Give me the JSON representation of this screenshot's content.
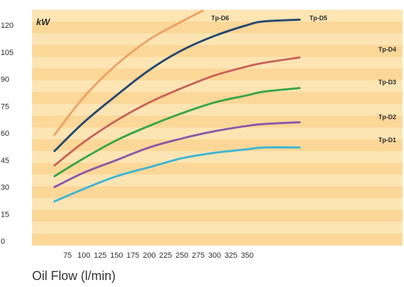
{
  "chart_data": {
    "type": "line",
    "title": "",
    "ylabel": "kW",
    "xlabel": "Oil Flow (l/min)",
    "xlim": [
      50,
      440
    ],
    "ylim": [
      0,
      125
    ],
    "x_ticks": [
      75,
      100,
      125,
      150,
      175,
      200,
      225,
      250,
      275,
      300,
      325,
      350
    ],
    "y_ticks": [
      0,
      15,
      30,
      45,
      60,
      75,
      90,
      105,
      120
    ],
    "grid": "horizontal bands",
    "legend": "inline labels at line ends",
    "series": [
      {
        "name": "Tp-D1",
        "color": "#3fb6d3",
        "x": [
          55,
          100,
          150,
          200,
          250,
          300,
          350,
          375,
          430
        ],
        "y": [
          22,
          29,
          36,
          41,
          46,
          49,
          51,
          52,
          52
        ]
      },
      {
        "name": "Tp-D2",
        "color": "#8b5aa8",
        "x": [
          55,
          100,
          150,
          200,
          250,
          300,
          350,
          375,
          430
        ],
        "y": [
          30,
          38,
          45,
          52,
          57,
          61,
          64,
          65,
          66
        ]
      },
      {
        "name": "Tp-D3",
        "color": "#3aa54a",
        "x": [
          55,
          100,
          150,
          200,
          250,
          300,
          350,
          375,
          430
        ],
        "y": [
          36,
          46,
          56,
          64,
          71,
          77,
          81,
          83,
          85
        ]
      },
      {
        "name": "Tp-D4",
        "color": "#c8645a",
        "x": [
          55,
          100,
          150,
          200,
          250,
          300,
          350,
          375,
          430
        ],
        "y": [
          42,
          55,
          67,
          77,
          85,
          92,
          97,
          99,
          102
        ]
      },
      {
        "name": "Tp-D5",
        "color": "#26486f",
        "x": [
          55,
          100,
          150,
          200,
          250,
          300,
          350,
          375,
          430
        ],
        "y": [
          50,
          66,
          81,
          95,
          106,
          114,
          120,
          122,
          123
        ]
      },
      {
        "name": "Tp-D6",
        "color": "#f0a166",
        "x": [
          55,
          100,
          150,
          200,
          250,
          282
        ],
        "y": [
          59,
          80,
          98,
          112,
          122,
          128
        ]
      }
    ],
    "colors": {
      "band_light": "#fde5b3",
      "band_dark": "#fbd798",
      "background": "#ffffff"
    }
  }
}
